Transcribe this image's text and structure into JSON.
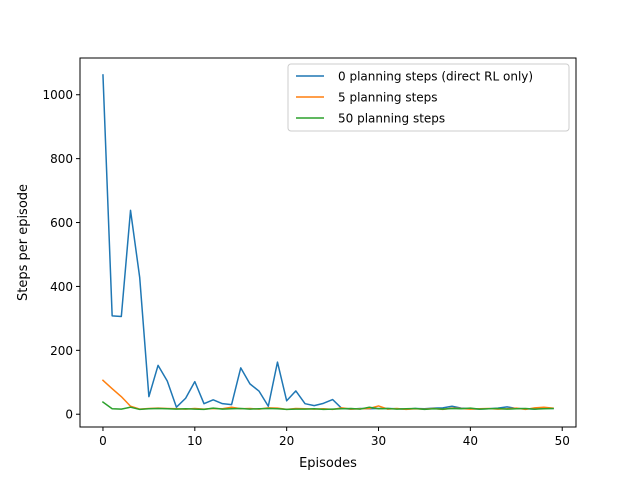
{
  "chart_data": {
    "type": "line",
    "title": "",
    "xlabel": "Episodes",
    "ylabel": "Steps per episode",
    "xlim": [
      -2.5,
      51.5
    ],
    "ylim": [
      -40,
      1115
    ],
    "xticks": [
      0,
      10,
      20,
      30,
      40,
      50
    ],
    "yticks": [
      0,
      200,
      400,
      600,
      800,
      1000
    ],
    "grid": false,
    "legend_position": "top-right",
    "x": [
      0,
      1,
      2,
      3,
      4,
      5,
      6,
      7,
      8,
      9,
      10,
      11,
      12,
      13,
      14,
      15,
      16,
      17,
      18,
      19,
      20,
      21,
      22,
      23,
      24,
      25,
      26,
      27,
      28,
      29,
      30,
      31,
      32,
      33,
      34,
      35,
      36,
      37,
      38,
      39,
      40,
      41,
      42,
      43,
      44,
      45,
      46,
      47,
      48,
      49
    ],
    "series": [
      {
        "name": "0 planning steps (direct RL only)",
        "color": "#1f77b4",
        "values": [
          1062,
          308,
          306,
          638,
          428,
          55,
          153,
          104,
          22,
          50,
          102,
          33,
          45,
          33,
          30,
          145,
          95,
          72,
          25,
          163,
          42,
          73,
          33,
          27,
          34,
          46,
          18,
          16,
          18,
          17,
          18,
          18,
          17,
          16,
          18,
          17,
          19,
          20,
          25,
          19,
          17,
          16,
          17,
          19,
          23,
          18,
          17,
          16,
          19,
          18
        ]
      },
      {
        "name": "5 planning steps",
        "color": "#ff7f0e",
        "values": [
          106,
          80,
          55,
          25,
          16,
          18,
          19,
          18,
          17,
          16,
          18,
          16,
          18,
          17,
          22,
          17,
          18,
          16,
          20,
          19,
          15,
          18,
          17,
          16,
          17,
          15,
          20,
          16,
          17,
          18,
          26,
          16,
          18,
          15,
          17,
          16,
          18,
          15,
          19,
          18,
          16,
          17,
          18,
          16,
          17,
          19,
          15,
          20,
          22,
          19
        ]
      },
      {
        "name": "50 planning steps",
        "color": "#2ca02c",
        "values": [
          38,
          17,
          16,
          22,
          15,
          17,
          18,
          17,
          16,
          17,
          16,
          15,
          19,
          16,
          17,
          18,
          16,
          17,
          18,
          17,
          15,
          16,
          16,
          17,
          15,
          16,
          17,
          18,
          16,
          22,
          17,
          18,
          16,
          17,
          18,
          15,
          17,
          16,
          18,
          17,
          19,
          16,
          17,
          18,
          16,
          17,
          18,
          16,
          17,
          18
        ]
      }
    ]
  }
}
